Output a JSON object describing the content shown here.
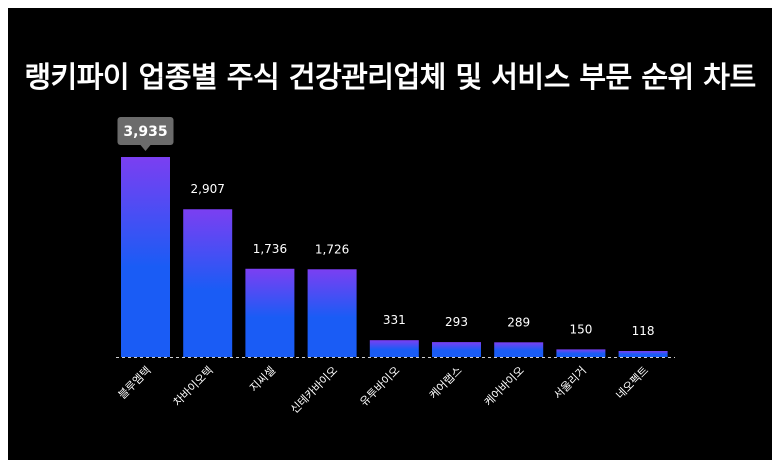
{
  "chart_data": {
    "type": "bar",
    "title": "랭키파이 업종별 주식 건강관리업체 및 서비스 부문 순위 차트",
    "categories": [
      "블루엠텍",
      "차바이오텍",
      "지씨셀",
      "신테카바이오",
      "유투바이오",
      "케어랩스",
      "케어바이오",
      "서울리거",
      "네오펙트"
    ],
    "values": [
      3935,
      2907,
      1736,
      1726,
      331,
      293,
      289,
      150,
      118
    ],
    "value_labels": [
      "3,935",
      "2,907",
      "1,736",
      "1,726",
      "331",
      "293",
      "289",
      "150",
      "118"
    ],
    "ylim": [
      0,
      3935
    ],
    "grid": false,
    "highlight_index": 0,
    "colors": {
      "bar_top": "#7b3ff2",
      "bar_bottom": "#1a5cf5",
      "background": "#000000",
      "callout": "#6b6b6b"
    }
  }
}
